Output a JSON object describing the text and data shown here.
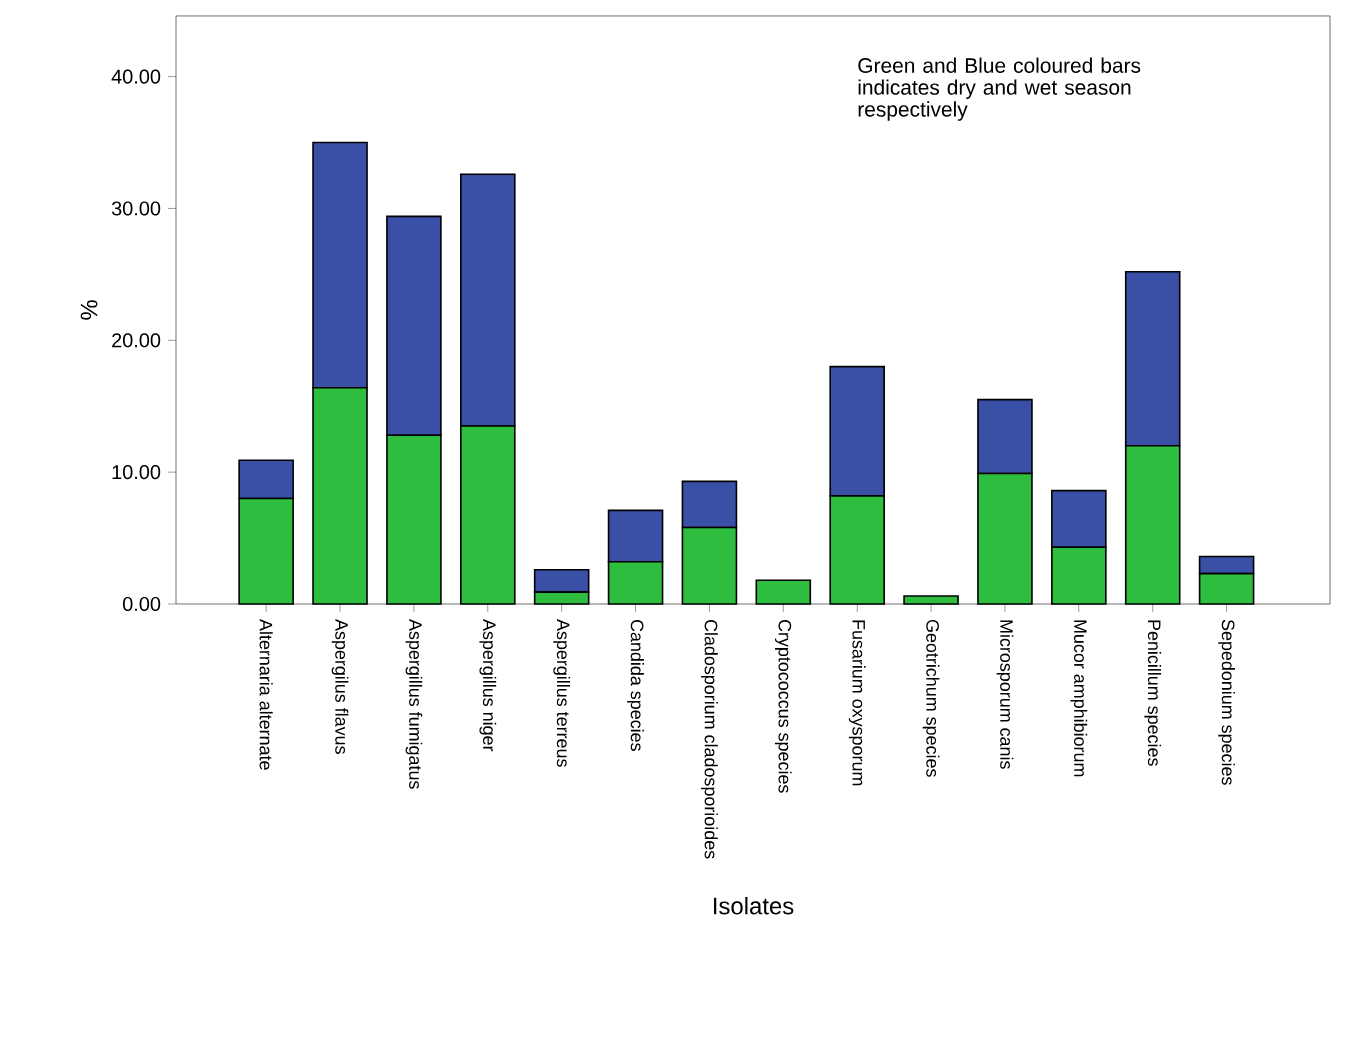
{
  "chart_data": {
    "type": "bar",
    "stacked": true,
    "xlabel": "Isolates",
    "ylabel": "%",
    "categories": [
      "Alternaria alternate",
      "Aspergilus flavus",
      "Aspergillus fumigatus",
      "Aspergillus niger",
      "Aspergillus terreus",
      "Candida species",
      "Cladosporium cladosporioides",
      "Cryptococcus species",
      "Fusarium oxysporum",
      "Geotrichum species",
      "Microsporum canis",
      "Mucor amphibiorum",
      "Penicillum species",
      "Sepedonium species"
    ],
    "series": [
      {
        "color": "#2ebd3f",
        "values": [
          8.0,
          16.4,
          12.8,
          13.5,
          0.9,
          3.2,
          5.8,
          1.8,
          8.2,
          0.6,
          9.9,
          4.3,
          12.0,
          2.3
        ]
      },
      {
        "color": "#3a4fa6",
        "values": [
          2.9,
          18.6,
          16.6,
          19.1,
          1.7,
          3.9,
          3.5,
          0,
          9.8,
          0,
          5.6,
          4.3,
          13.2,
          1.3
        ]
      }
    ],
    "ylim": [
      0,
      44.6
    ],
    "yticks": [
      {
        "value": 0,
        "label": "0.00"
      },
      {
        "value": 10,
        "label": "10.00"
      },
      {
        "value": 20,
        "label": "20.00"
      },
      {
        "value": 30,
        "label": "30.00"
      },
      {
        "value": 40,
        "label": "40.00"
      }
    ],
    "annotations": [
      "Green and Blue coloured bars indicates dry and wet season respectively"
    ]
  }
}
